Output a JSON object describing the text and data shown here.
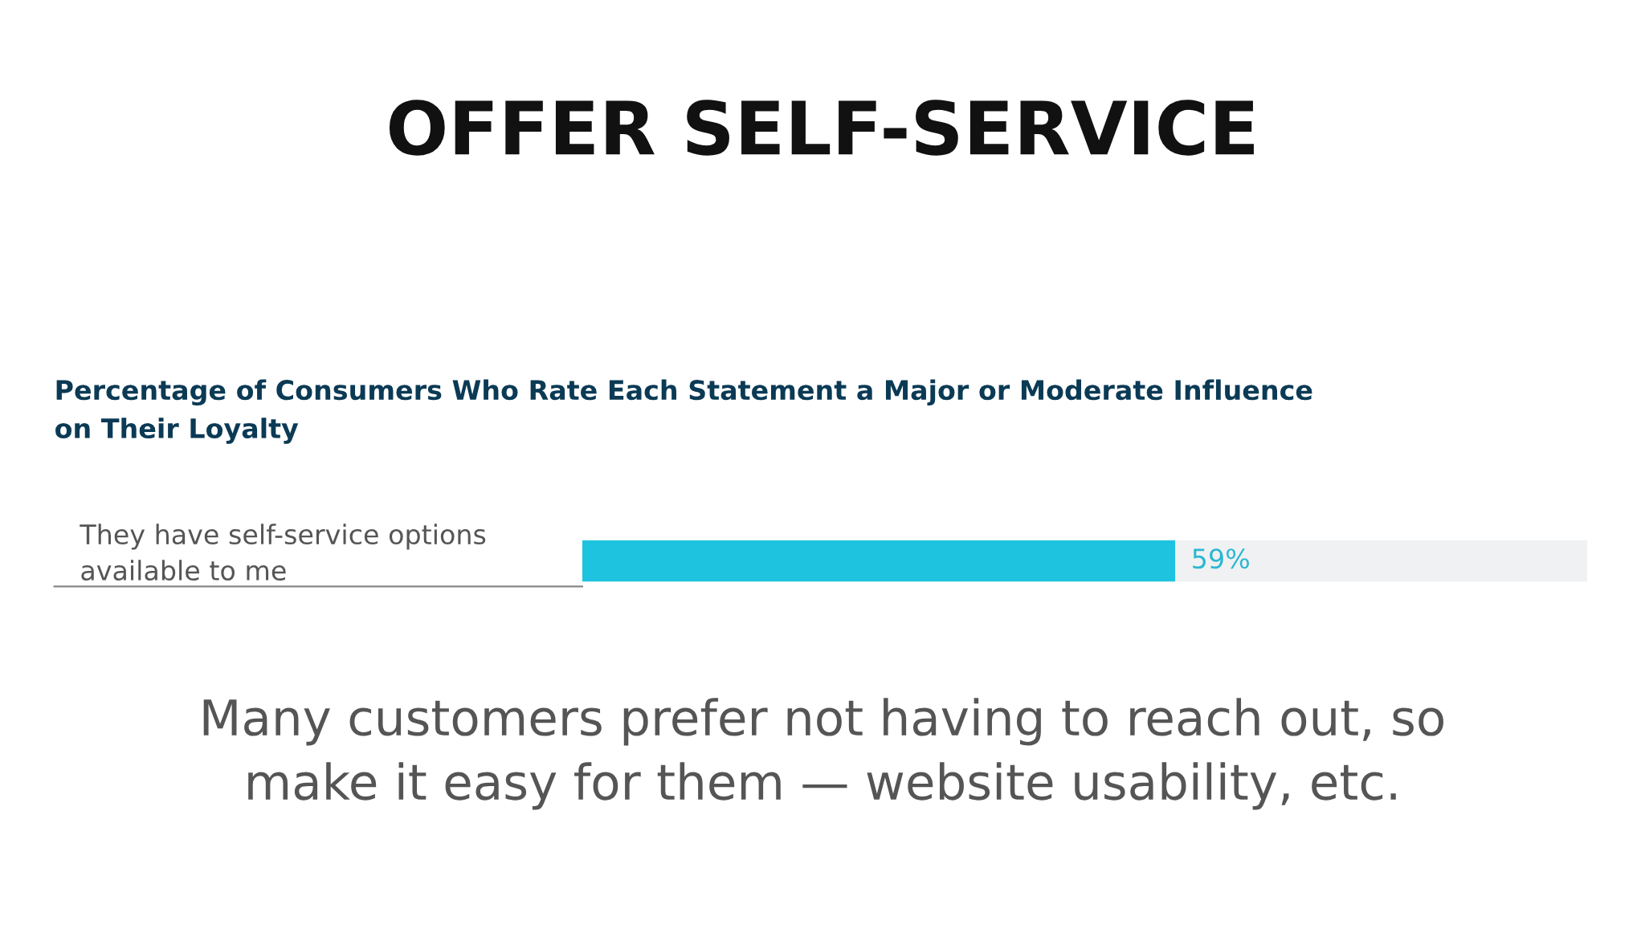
{
  "chart_data": {
    "type": "bar",
    "orientation": "horizontal",
    "stacked": true,
    "title": "OFFER SELF-SERVICE",
    "subtitle": "Percentage of Consumers Who Rate Each Statement a Major or Moderate Influence\non Their Loyalty",
    "categories": [
      "They have self-service options\navailable to me"
    ],
    "series": [
      {
        "color": "#1ec3e0",
        "values": [
          59
        ],
        "value_labels": [
          "59%"
        ]
      },
      {
        "color": "#f0f1f2",
        "values": [
          41
        ]
      }
    ],
    "tick_labels": false,
    "annotations": [
      "Many customers prefer not having to reach out, so\nmake it easy for them — website usability, etc."
    ]
  }
}
